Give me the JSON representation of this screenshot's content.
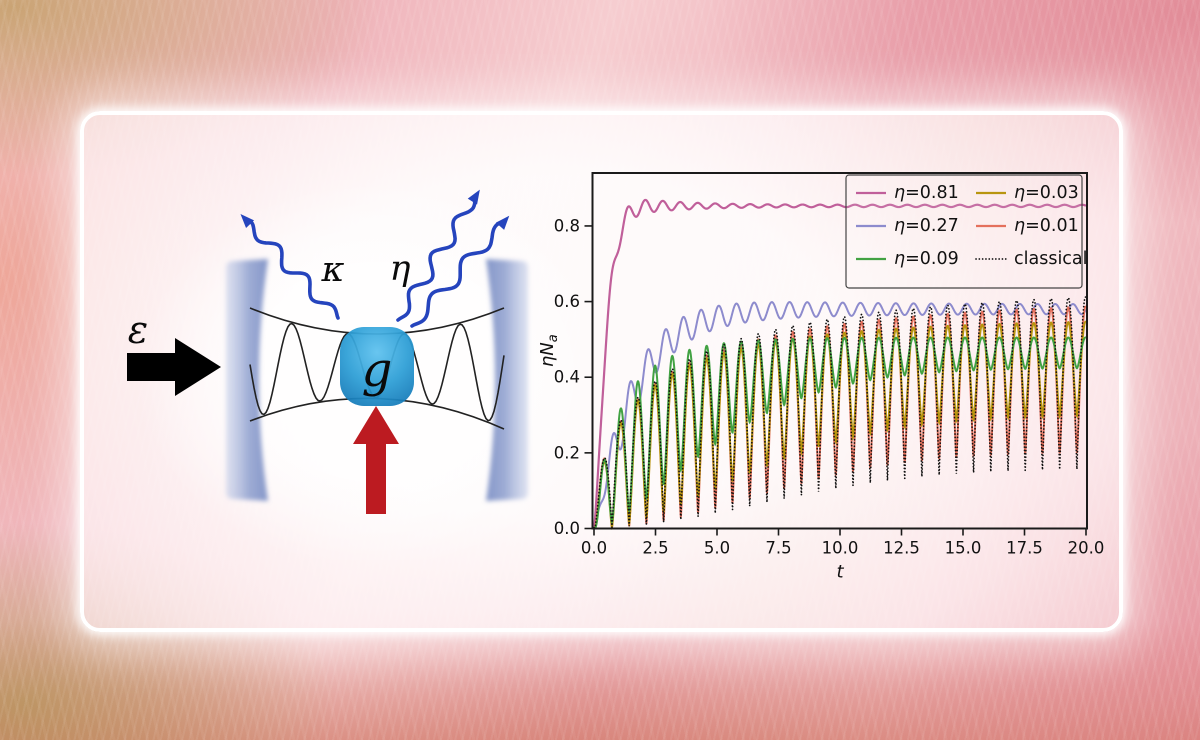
{
  "diagram": {
    "drive_label": "ε",
    "kappa_label": "κ",
    "eta_label": "η",
    "coupling_label": "g",
    "colors": {
      "mirror": "#8496c9",
      "qubit_box": "#2e9fd6",
      "pump_arrow": "#bc1b21",
      "drive_arrow": "#000000",
      "photon_wave": "#2544bd",
      "mode_line": "#222222"
    }
  },
  "chart_data": {
    "type": "line",
    "title": "",
    "xlabel": "t",
    "ylabel_main": "ηN",
    "ylabel_sub": "a",
    "xlim": [
      0,
      20
    ],
    "ylim": [
      0,
      0.94
    ],
    "xticks": [
      0.0,
      2.5,
      5.0,
      7.5,
      10.0,
      12.5,
      15.0,
      17.5,
      20.0
    ],
    "yticks": [
      0.0,
      0.2,
      0.4,
      0.6,
      0.8
    ],
    "tick_decimals": 1,
    "grid": false,
    "frame_color": "#1a1a1a",
    "legend_position": "upper right",
    "legend_columns": 2,
    "draw_order": [
      1,
      0,
      4,
      3,
      2,
      5
    ],
    "series": [
      {
        "label": "η=0.81",
        "label_sym": "η",
        "label_rest": "=0.81",
        "color": "#c05f9a",
        "line_style": "solid",
        "width": 2.2,
        "model": {
          "type": "rise",
          "steady": 0.853,
          "tau": 0.55,
          "pow": 1.35,
          "amp0": 0.042,
          "amp_tau": 2.0,
          "amp_inf": 0.003,
          "period": 0.71,
          "t0": 1.38
        }
      },
      {
        "label": "η=0.27",
        "label_sym": "η",
        "label_rest": "=0.27",
        "color": "#8d8bcd",
        "line_style": "solid",
        "width": 2.0,
        "model": {
          "type": "rise",
          "steady": 0.58,
          "tau": 1.7,
          "pow": 1.1,
          "amp0": 0.06,
          "amp_tau": 4.0,
          "amp_inf": 0.013,
          "period": 0.72,
          "t0": 0.75
        }
      },
      {
        "label": "η=0.09",
        "label_sym": "η",
        "label_rest": "=0.09",
        "color": "#42a243",
        "line_style": "solid",
        "width": 2.0,
        "model": {
          "type": "pulse",
          "peak": 0.505,
          "peak_tau": 1.1,
          "peak_pow": 0.8,
          "trough": 0.425,
          "trough_tau": 6.0,
          "trough_pow": 1.5,
          "q": 0.8,
          "period": 0.7,
          "t0": 0.38
        }
      },
      {
        "label": "η=0.03",
        "label_sym": "η",
        "label_rest": "=0.03",
        "color": "#b8950f",
        "line_style": "solid",
        "width": 2.0,
        "model": {
          "type": "pulse",
          "peak": 0.557,
          "peak_tau": 2.0,
          "peak_pow": 0.6,
          "trough": 0.3,
          "trough_tau": 8.0,
          "trough_pow": 1.8,
          "q": 0.7,
          "period": 0.7,
          "t0": 0.38
        }
      },
      {
        "label": "η=0.01",
        "label_sym": "η",
        "label_rest": "=0.01",
        "color": "#e4705c",
        "line_style": "solid",
        "width": 2.0,
        "model": {
          "type": "pulse",
          "peak": 0.615,
          "peak_tau": 2.6,
          "peak_pow": 0.55,
          "trough": 0.2,
          "trough_tau": 9.0,
          "trough_pow": 2.0,
          "q": 0.6,
          "period": 0.7,
          "t0": 0.38
        }
      },
      {
        "label": "classical",
        "label_sym": "",
        "label_rest": "classical",
        "color": "#111111",
        "line_style": "dotted",
        "width": 1.7,
        "model": {
          "type": "pulse",
          "peak": 0.648,
          "peak_tau": 2.9,
          "peak_pow": 0.55,
          "trough": 0.155,
          "trough_tau": 9.5,
          "trough_pow": 2.0,
          "q": 0.5,
          "period": 0.7,
          "t0": 0.38
        }
      }
    ]
  }
}
